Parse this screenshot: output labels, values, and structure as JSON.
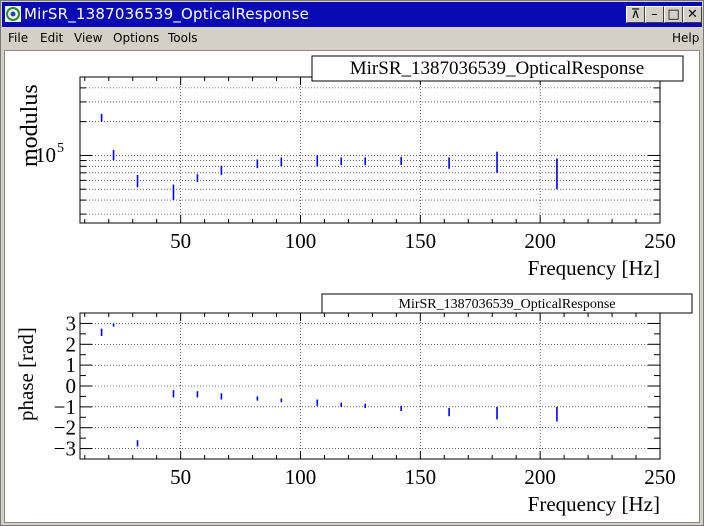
{
  "window": {
    "title": "MirSR_1387036539_OpticalResponse",
    "controls": [
      "⊼",
      "–",
      "□",
      "✕"
    ]
  },
  "menubar": {
    "items": [
      "File",
      "Edit",
      "View",
      "Options",
      "Tools"
    ],
    "help": "Help"
  },
  "plots": {
    "top": {
      "title": "MirSR_1387036539_OpticalResponse",
      "ylabel": "modulus",
      "xlabel": "Frequency [Hz]",
      "ytick_major": "10",
      "ytick_exp": "5",
      "xticks": [
        "50",
        "100",
        "150",
        "200",
        "250"
      ]
    },
    "bottom": {
      "title": "MirSR_1387036539_OpticalResponse",
      "ylabel": "phase [rad]",
      "xlabel": "Frequency [Hz]",
      "yticks": [
        "3",
        "2",
        "1",
        "0",
        "−1",
        "−2",
        "−3"
      ],
      "xticks": [
        "50",
        "100",
        "150",
        "200",
        "250"
      ]
    }
  },
  "chart_data": [
    {
      "type": "scatter",
      "title": "MirSR_1387036539_OpticalResponse",
      "xlabel": "Frequency [Hz]",
      "ylabel": "modulus",
      "xlim": [
        8,
        250
      ],
      "ylim": [
        25000,
        500000
      ],
      "log_y": true,
      "grid": true,
      "color": "#0000ee",
      "series": [
        {
          "x": [
            17,
            22,
            32,
            47,
            57,
            67,
            82,
            92,
            107,
            117,
            127,
            142,
            162,
            182,
            207
          ],
          "y_low": [
            200000,
            91000,
            52000,
            40000,
            58000,
            67000,
            77000,
            80000,
            80000,
            82000,
            82000,
            82000,
            76000,
            70000,
            50000
          ],
          "y_high": [
            235000,
            112000,
            67000,
            55000,
            68000,
            81000,
            92000,
            96000,
            100000,
            96000,
            96000,
            97000,
            96000,
            108000,
            94000
          ]
        }
      ]
    },
    {
      "type": "scatter",
      "title": "MirSR_1387036539_OpticalResponse",
      "xlabel": "Frequency [Hz]",
      "ylabel": "phase [rad]",
      "xlim": [
        8,
        250
      ],
      "ylim": [
        -3.5,
        3.5
      ],
      "grid": true,
      "color": "#0000ee",
      "series": [
        {
          "x": [
            17,
            22,
            32,
            47,
            57,
            67,
            82,
            92,
            107,
            117,
            127,
            142,
            162,
            182,
            207
          ],
          "y_low": [
            2.4,
            2.85,
            -2.9,
            -0.55,
            -0.55,
            -0.65,
            -0.7,
            -0.78,
            -0.95,
            -1.0,
            -1.05,
            -1.2,
            -1.45,
            -1.6,
            -1.7
          ],
          "y_high": [
            2.75,
            3.0,
            -2.6,
            -0.2,
            -0.25,
            -0.35,
            -0.5,
            -0.6,
            -0.65,
            -0.8,
            -0.85,
            -0.95,
            -1.05,
            -1.0,
            -1.0
          ]
        }
      ]
    }
  ]
}
